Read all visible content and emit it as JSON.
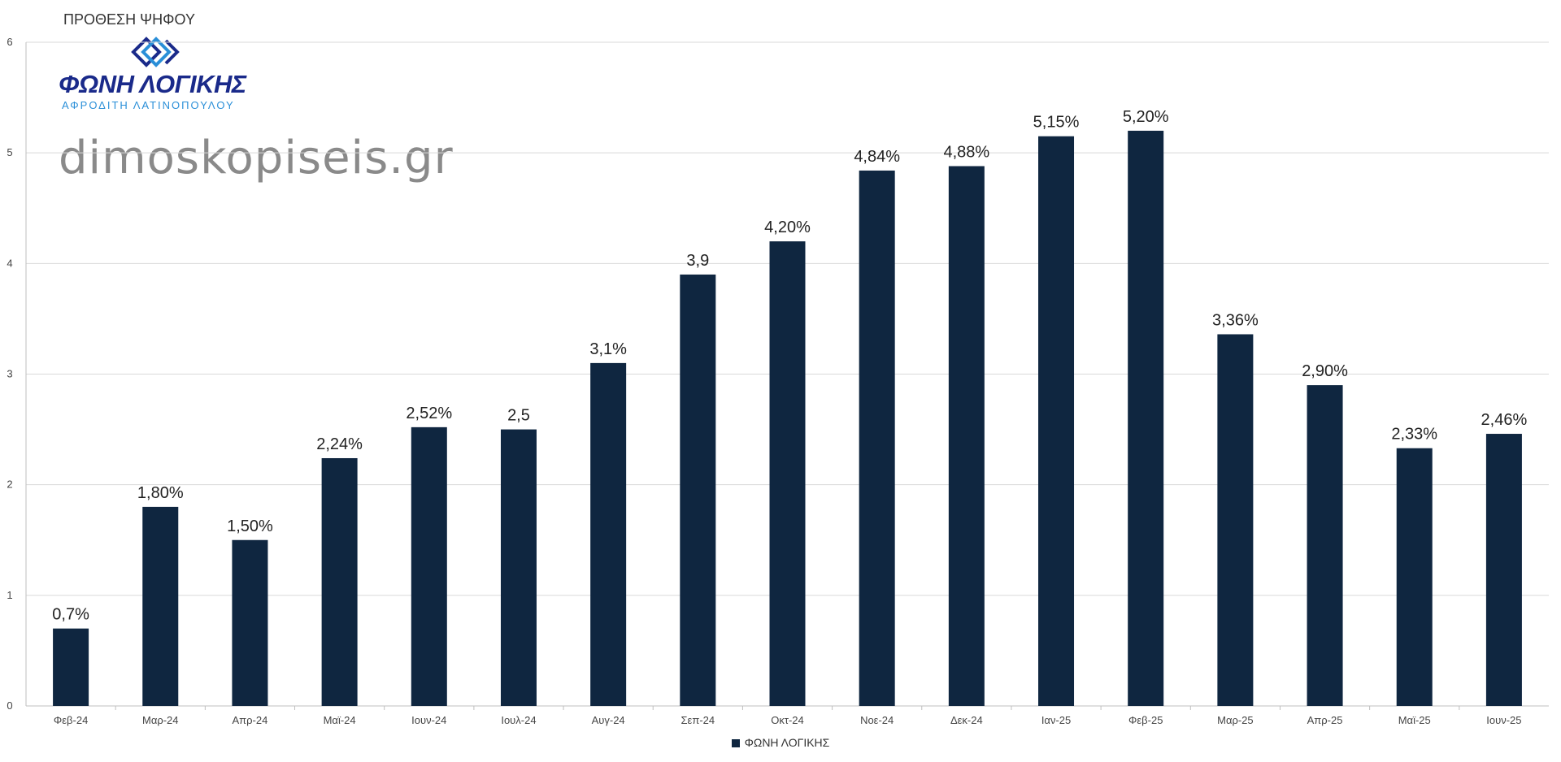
{
  "chart_data": {
    "type": "bar",
    "title": "ΠΡΟΘΕΣΗ ΨΗΦΟΥ",
    "categories": [
      "Φεβ-24",
      "Μαρ-24",
      "Απρ-24",
      "Μαϊ-24",
      "Ιουν-24",
      "Ιουλ-24",
      "Αυγ-24",
      "Σεπ-24",
      "Οκτ-24",
      "Νοε-24",
      "Δεκ-24",
      "Ιαν-25",
      "Φεβ-25",
      "Μαρ-25",
      "Απρ-25",
      "Μαϊ-25",
      "Ιουν-25"
    ],
    "series": [
      {
        "name": "ΦΩΝΗ ΛΟΓΙΚΗΣ",
        "color": "#0f2640",
        "values": [
          0.7,
          1.8,
          1.5,
          2.24,
          2.52,
          2.5,
          3.1,
          3.9,
          4.2,
          4.84,
          4.88,
          5.15,
          5.2,
          3.36,
          2.9,
          2.33,
          2.46
        ],
        "labels": [
          "0,7%",
          "1,80%",
          "1,50%",
          "2,24%",
          "2,52%",
          "2,5",
          "3,1%",
          "3,9",
          "4,20%",
          "4,84%",
          "4,88%",
          "5,15%",
          "5,20%",
          "3,36%",
          "2,90%",
          "2,33%",
          "2,46%"
        ]
      }
    ],
    "ylim": [
      0,
      6
    ],
    "yticks": [
      "0",
      "1",
      "2",
      "3",
      "4",
      "5",
      "6"
    ],
    "grid": true,
    "legend_position": "bottom"
  },
  "logo": {
    "name": "ΦΩΝΗ ΛΟΓΙΚΗΣ",
    "subtitle": "ΑΦΡΟΔΙΤΗ ΛΑΤΙΝΟΠΟΥΛΟΥ"
  },
  "watermark": "dimoskopiseis.gr"
}
